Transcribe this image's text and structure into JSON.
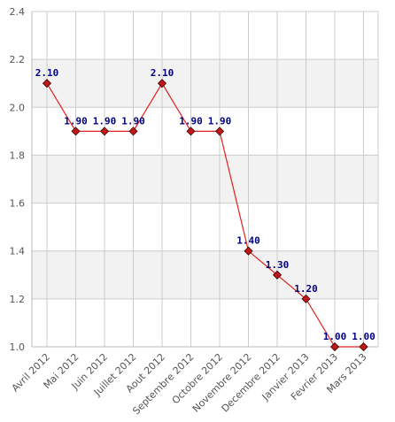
{
  "chart_data": {
    "type": "line",
    "categories": [
      "Avril 2012",
      "Mai 2012",
      "Juin 2012",
      "Juillet 2012",
      "Aout 2012",
      "Septembre 2012",
      "Octobre 2012",
      "Novembre 2012",
      "Decembre 2012",
      "Janvier 2013",
      "Fevrier 2013",
      "Mars 2013"
    ],
    "series": [
      {
        "values": [
          2.1,
          1.9,
          1.9,
          1.9,
          2.1,
          1.9,
          1.9,
          1.4,
          1.3,
          1.2,
          1.0,
          1.0
        ],
        "labels": [
          "2.10",
          "1.90",
          "1.90",
          "1.90",
          "2.10",
          "1.90",
          "1.90",
          "1.40",
          "1.30",
          "1.20",
          "1.00",
          "1.00"
        ],
        "color": "#e02020",
        "marker_color": "#c01818",
        "label_color": "#000080"
      }
    ],
    "ylim": [
      1.0,
      2.4
    ],
    "yticks": [
      "1.0",
      "1.2",
      "1.4",
      "1.6",
      "1.8",
      "2.0",
      "2.2",
      "2.4"
    ],
    "grid": true,
    "band_color": "#f2f2f2",
    "grid_color": "#cccccc",
    "title": "",
    "xlabel": "",
    "ylabel": ""
  }
}
